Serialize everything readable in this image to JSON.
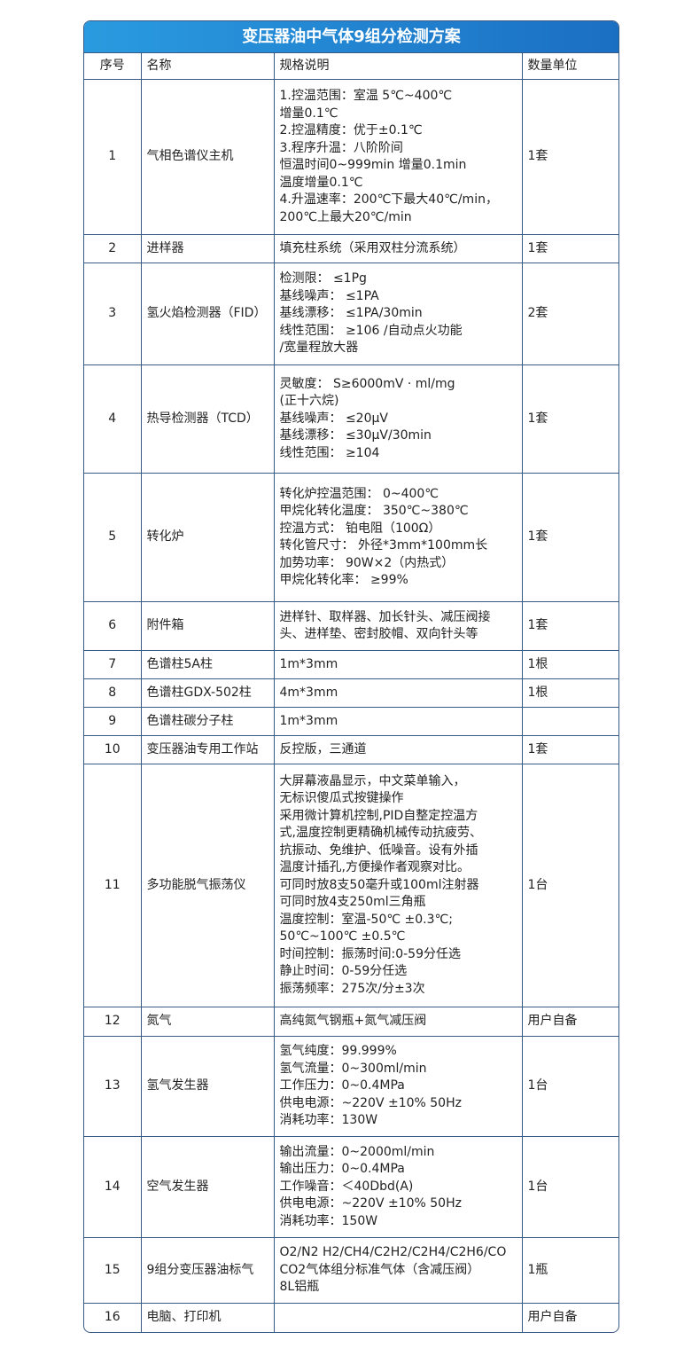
{
  "title": "变压器油中气体9组分检测方案",
  "headers": [
    "序号",
    "名称",
    "规格说明",
    "数量单位"
  ],
  "rows": [
    {
      "no": "1",
      "name": "气相色谱仪主机",
      "spec": [
        "1.控温范围：室温 5℃~400℃",
        "增量0.1℃",
        "2.控温精度：优于±0.1℃",
        "3.程序升温：八阶阶间",
        "恒温时间0~999min 增量0.1min",
        "温度增量0.1℃",
        "4.升温速率：200℃下最大40℃/min，",
        "200℃上最大20℃/min"
      ],
      "qty": "1套"
    },
    {
      "no": "2",
      "name": "进样器",
      "spec": [
        "填充柱系统（采用双柱分流系统）"
      ],
      "qty": "1套"
    },
    {
      "no": "3",
      "name": "氢火焰检测器（FID）",
      "spec": [
        "检测限： ≤1Pg",
        "基线噪声： ≤1PA",
        "基线漂移： ≤1PA/30min",
        "线性范围： ≥106 /自动点火功能",
        "/宽量程放大器"
      ],
      "qty": "2套"
    },
    {
      "no": "4",
      "name": "热导检测器（TCD）",
      "spec": [
        "灵敏度： S≥6000mV · ml/mg",
        "(正十六烷)",
        "基线噪声： ≤20μV",
        "基线漂移： ≤30μV/30min",
        "线性范围： ≥104"
      ],
      "qty": "1套"
    },
    {
      "no": "5",
      "name": "转化炉",
      "spec": [
        "转化炉控温范围： 0~400℃",
        "甲烷化转化温度： 350℃~380℃",
        "控温方式： 铂电阻（100Ω）",
        "转化管尺寸： 外径*3mm*100mm长",
        "加势功率： 90W×2（内热式）",
        "甲烷化转化率： ≥99%"
      ],
      "qty": "1套"
    },
    {
      "no": "6",
      "name": "附件箱",
      "spec": [
        "进样针、取样器、加长针头、减压阀接",
        "头、进样垫、密封胶帽、双向针头等"
      ],
      "qty": "1套"
    },
    {
      "no": "7",
      "name": "色谱柱5A柱",
      "spec": [
        "1m*3mm"
      ],
      "qty": "1根"
    },
    {
      "no": "8",
      "name": "色谱柱GDX-502柱",
      "spec": [
        "4m*3mm"
      ],
      "qty": "1根"
    },
    {
      "no": "9",
      "name": "色谱柱碳分子柱",
      "spec": [
        "1m*3mm"
      ],
      "qty": ""
    },
    {
      "no": "10",
      "name": "变压器油专用工作站",
      "spec": [
        "反控版，三通道"
      ],
      "qty": "1套"
    },
    {
      "no": "11",
      "name": "多功能脱气振荡仪",
      "spec": [
        "大屏幕液晶显示，中文菜单输入，",
        "无标识傻瓜式按键操作",
        "采用微计算机控制,PID自整定控温方",
        "式,温度控制更精确机械传动抗疲劳、",
        "抗振动、免维护、低噪音。设有外插",
        "温度计插孔,方便操作者观察对比。",
        "可同时放8支50毫升或100ml注射器",
        "可同时放4支250ml三角瓶",
        "温度控制：室温-50℃ ±0.3℃;",
        " 50℃~100℃ ±0.5℃",
        "时间控制：振荡时间:0-59分任选",
        "静止时间：0-59分任选",
        "振荡频率：275次/分±3次"
      ],
      "qty": "1台"
    },
    {
      "no": "12",
      "name": "氮气",
      "spec": [
        "高纯氮气钢瓶+氮气减压阀"
      ],
      "qty": "用户自备"
    },
    {
      "no": "13",
      "name": "氢气发生器",
      "spec": [
        "氢气纯度：99.999%",
        "氢气流量：0~300ml/min",
        "工作压力：0~0.4MPa",
        "供电电源：~220V ±10% 50Hz",
        "消耗功率：130W"
      ],
      "qty": "1台"
    },
    {
      "no": "14",
      "name": "空气发生器",
      "spec": [
        "输出流量：0~2000ml/min",
        "输出压力：0~0.4MPa",
        "工作噪音：＜40Dbd(A)",
        "供电电源：~220V ±10% 50Hz",
        "消耗功率：150W"
      ],
      "qty": "1台"
    },
    {
      "no": "15",
      "name": "9组分变压器油标气",
      "spec": [
        "O2/N2 H2/CH4/C2H2/C2H4/C2H6/CO",
        "CO2气体组分标准气体（含减压阀）",
        "8L铝瓶"
      ],
      "qty": "1瓶"
    },
    {
      "no": "16",
      "name": "电脑、打印机",
      "spec": [],
      "qty": "用户自备"
    }
  ]
}
